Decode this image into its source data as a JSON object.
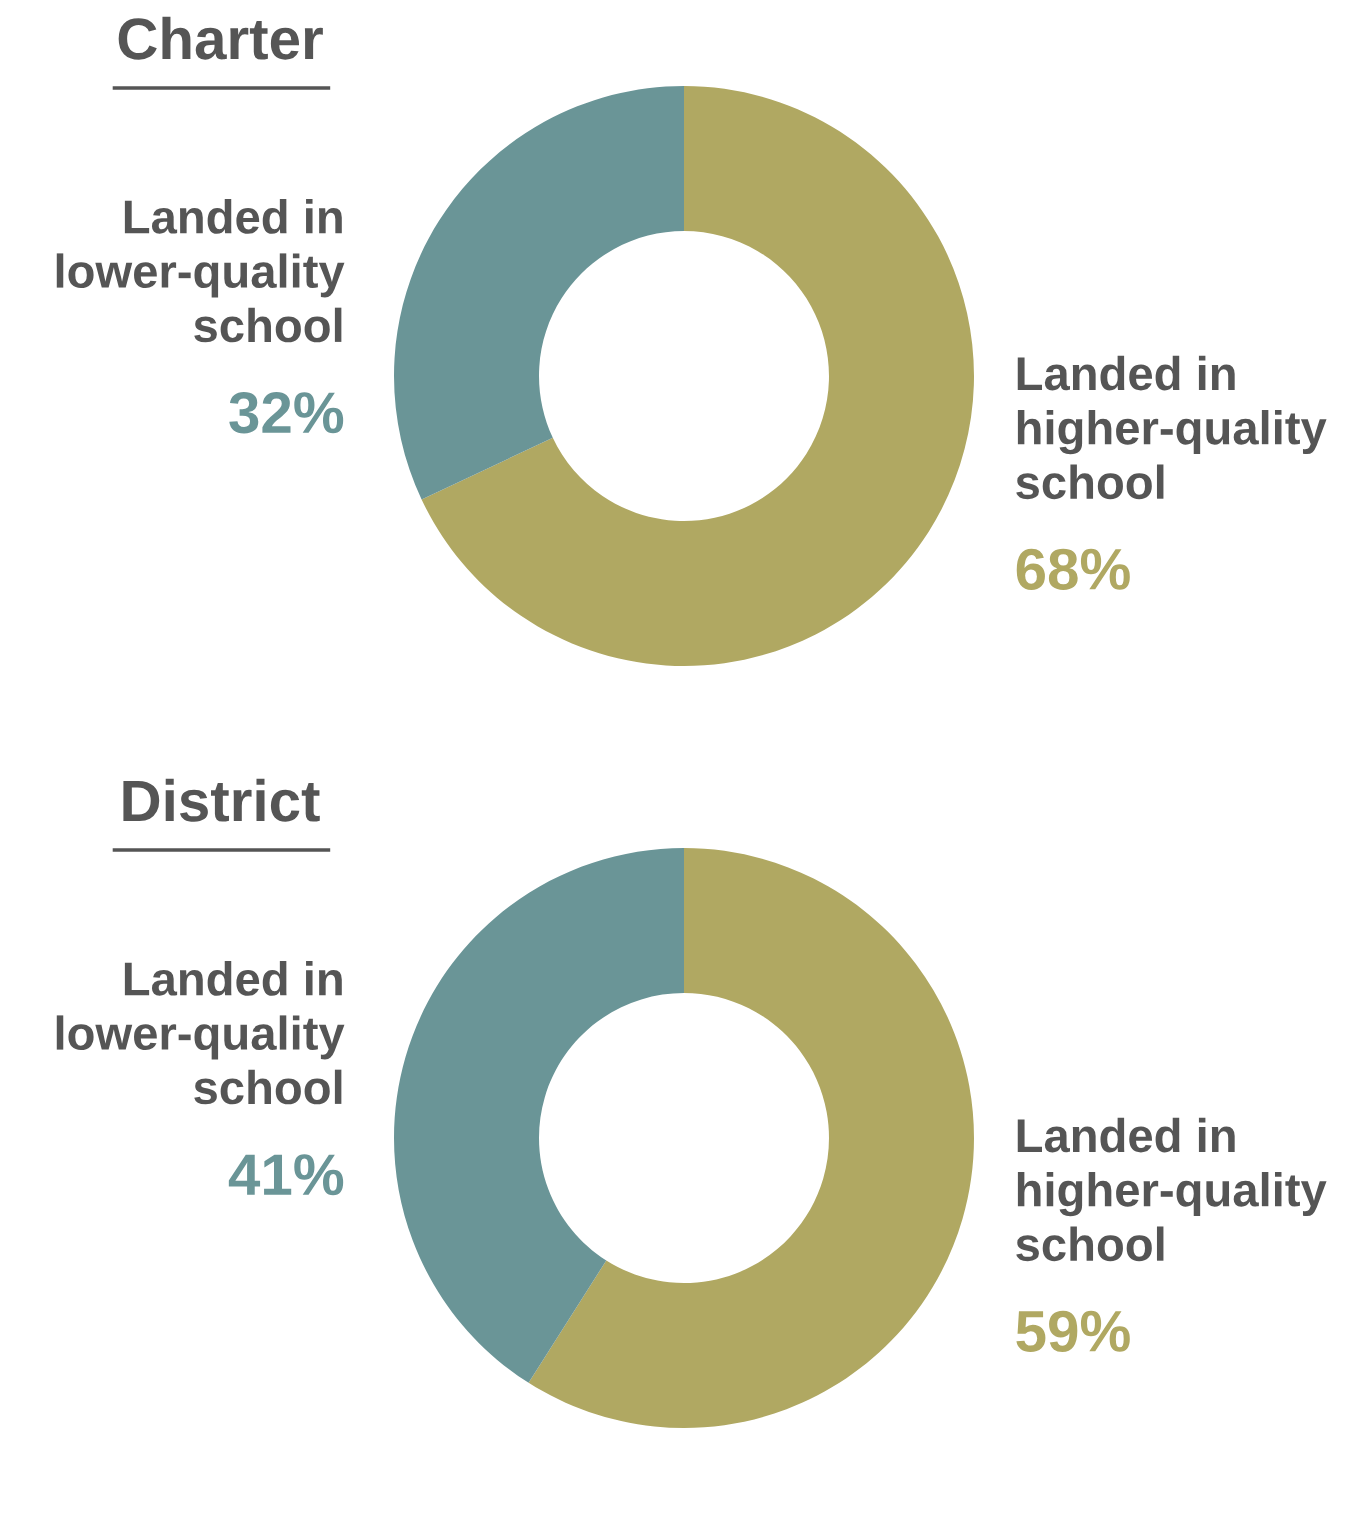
{
  "chart_data": [
    {
      "type": "donut",
      "title": "Charter",
      "categories": [
        "Landed in\nhigher-quality\nschool",
        "Landed in\nlower-quality\nschool"
      ],
      "values": [
        68,
        32
      ],
      "value_labels": [
        "68%",
        "32%"
      ],
      "colors": [
        "#b0a862",
        "#6a9597"
      ]
    },
    {
      "type": "donut",
      "title": "District",
      "categories": [
        "Landed in\nhigher-quality\nschool",
        "Landed in\nlower-quality\nschool"
      ],
      "values": [
        59,
        41
      ],
      "value_labels": [
        "59%",
        "41%"
      ],
      "colors": [
        "#b0a862",
        "#6a9597"
      ]
    }
  ]
}
